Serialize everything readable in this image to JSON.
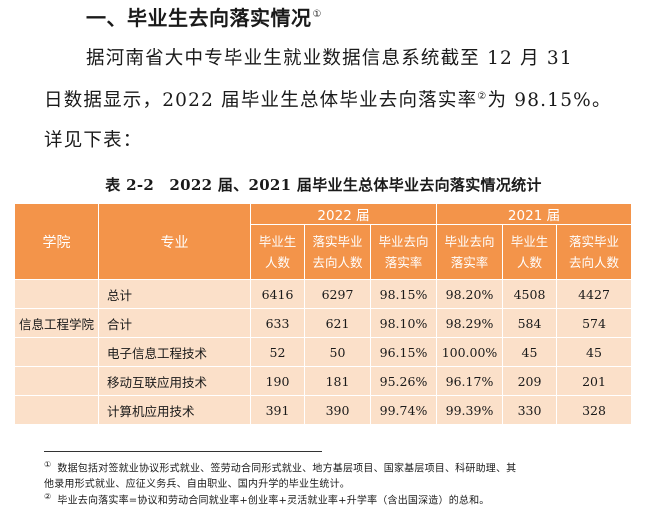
{
  "heading": {
    "text": "一、毕业生去向落实情况",
    "note": "①"
  },
  "paragraph": {
    "line1": "据河南省大中专毕业生就业数据信息系统截至 12 月 31",
    "line2a": "日数据显示，2022 届毕业生总体毕业去向落实率",
    "line2_note": "②",
    "line2b": "为 98.15%。",
    "line3": "详见下表："
  },
  "caption": "表 2-2　2022 届、2021 届毕业生总体毕业去向落实情况统计",
  "table": {
    "headers": {
      "college": "学院",
      "major": "专业",
      "year2022": "2022 届",
      "year2021": "2021 届",
      "grads_line1": "毕业生",
      "grads_line2": "人数",
      "placed_line1": "落实毕业",
      "placed_line2": "去向人数",
      "rate_line1": "毕业去向",
      "rate_line2": "落实率"
    },
    "rows": [
      {
        "college": "",
        "major": "总计",
        "g22": "6416",
        "p22": "6297",
        "r22": "98.15%",
        "r21": "98.20%",
        "g21": "4508",
        "p21": "4427"
      },
      {
        "college": "信息工程学院",
        "major": "合计",
        "g22": "633",
        "p22": "621",
        "r22": "98.10%",
        "r21": "98.29%",
        "g21": "584",
        "p21": "574"
      },
      {
        "college": "",
        "major": "电子信息工程技术",
        "g22": "52",
        "p22": "50",
        "r22": "96.15%",
        "r21": "100.00%",
        "g21": "45",
        "p21": "45"
      },
      {
        "college": "",
        "major": "移动互联应用技术",
        "g22": "190",
        "p22": "181",
        "r22": "95.26%",
        "r21": "96.17%",
        "g21": "209",
        "p21": "201"
      },
      {
        "college": "",
        "major": "计算机应用技术",
        "g22": "391",
        "p22": "390",
        "r22": "99.74%",
        "r21": "99.39%",
        "g21": "330",
        "p21": "328"
      }
    ]
  },
  "footnotes": {
    "fn1_mark": "①",
    "fn1_line1": "数据包括对签就业协议形式就业、签劳动合同形式就业、地方基层项目、国家基层项目、科研助理、其",
    "fn1_line2": "他录用形式就业、应征义务兵、自由职业、国内升学的毕业生统计。",
    "fn2_mark": "②",
    "fn2_text": "毕业去向落实率=协议和劳动合同就业率+创业率+灵活就业率+升学率（含出国深造）的总和。"
  }
}
